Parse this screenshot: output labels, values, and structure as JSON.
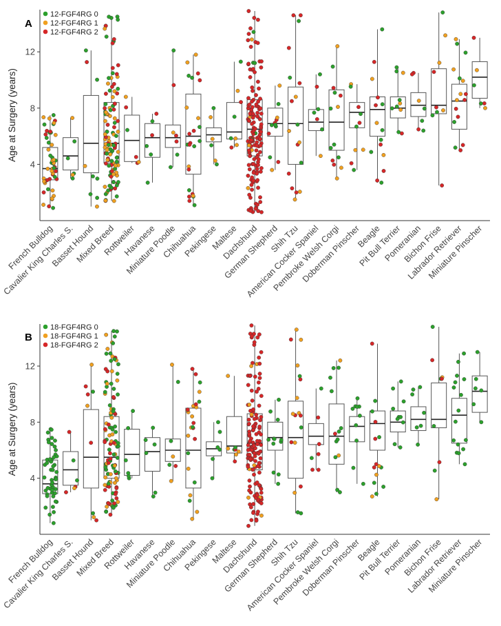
{
  "chart_data": [
    {
      "type": "box",
      "panel_label": "A",
      "ylabel": "Age at Surgery (years)",
      "xlabel": "",
      "ylim": [
        0,
        15
      ],
      "yticks": [
        4,
        8,
        12
      ],
      "grid": false,
      "legend_position": "top-left",
      "legend": [
        {
          "label": "12-FGF4RG 0",
          "color": "#2ca02c"
        },
        {
          "label": "12-FGF4RG 1",
          "color": "#f0a020"
        },
        {
          "label": "12-FGF4RG 2",
          "color": "#d62728"
        }
      ],
      "categories": [
        "French Bulldog",
        "Cavalier King Charles S.",
        "Basset Hound",
        "Mixed Breed",
        "Rottweiler",
        "Havanese",
        "Miniature Poodle",
        "Chihuahua",
        "Pekingese",
        "Maltese",
        "Dachshund",
        "German Shepherd",
        "Shih Tzu",
        "American Cocker Spaniel",
        "Pembroke Welsh Corgi",
        "Doberman Pinscher",
        "Beagle",
        "Pit Bull Terrier",
        "Pomeranian",
        "Bichon Frise",
        "Labrador Retriever",
        "Miniature Pinscher"
      ],
      "boxes": [
        {
          "min": 0.9,
          "q1": 2.9,
          "median": 3.7,
          "q3": 5.2,
          "max": 7.5
        },
        {
          "min": 3.0,
          "q1": 3.6,
          "median": 4.6,
          "q3": 5.9,
          "max": 7.3
        },
        {
          "min": 1.0,
          "q1": 3.4,
          "median": 5.5,
          "q3": 8.9,
          "max": 12.1
        },
        {
          "min": 1.4,
          "q1": 4.1,
          "median": 5.5,
          "q3": 8.4,
          "max": 14.5
        },
        {
          "min": 4.1,
          "q1": 4.2,
          "median": 5.7,
          "q3": 7.5,
          "max": 8.8
        },
        {
          "min": 2.7,
          "q1": 4.5,
          "median": 5.9,
          "q3": 6.9,
          "max": 7.6
        },
        {
          "min": 3.8,
          "q1": 5.2,
          "median": 5.9,
          "q3": 6.8,
          "max": 12.1
        },
        {
          "min": 1.1,
          "q1": 3.3,
          "median": 6.0,
          "q3": 9.0,
          "max": 11.8
        },
        {
          "min": 4.0,
          "q1": 5.6,
          "median": 6.1,
          "q3": 6.6,
          "max": 8.0
        },
        {
          "min": 5.2,
          "q1": 5.8,
          "median": 6.3,
          "q3": 8.4,
          "max": 11.3
        },
        {
          "min": 0.6,
          "q1": 4.6,
          "median": 6.5,
          "q3": 8.6,
          "max": 14.9
        },
        {
          "min": 3.6,
          "q1": 6.0,
          "median": 6.9,
          "q3": 8.0,
          "max": 9.6
        },
        {
          "min": 1.5,
          "q1": 4.0,
          "median": 6.9,
          "q3": 9.5,
          "max": 14.6
        },
        {
          "min": 4.6,
          "q1": 6.4,
          "median": 7.0,
          "q3": 7.9,
          "max": 10.4
        },
        {
          "min": 3.0,
          "q1": 5.0,
          "median": 7.0,
          "q3": 9.3,
          "max": 12.4
        },
        {
          "min": 3.6,
          "q1": 6.6,
          "median": 7.7,
          "q3": 8.4,
          "max": 9.7
        },
        {
          "min": 2.7,
          "q1": 6.0,
          "median": 7.9,
          "q3": 8.8,
          "max": 13.6
        },
        {
          "min": 6.2,
          "q1": 7.3,
          "median": 8.0,
          "q3": 8.8,
          "max": 10.9
        },
        {
          "min": 6.4,
          "q1": 7.4,
          "median": 8.2,
          "q3": 9.1,
          "max": 10.5
        },
        {
          "min": 2.5,
          "q1": 7.6,
          "median": 8.2,
          "q3": 10.8,
          "max": 14.8
        },
        {
          "min": 5.0,
          "q1": 6.5,
          "median": 8.5,
          "q3": 9.7,
          "max": 12.9
        },
        {
          "min": 8.0,
          "q1": 8.7,
          "median": 10.2,
          "q3": 11.3,
          "max": 13.0
        }
      ]
    },
    {
      "type": "box",
      "panel_label": "B",
      "ylabel": "Age at Surgery (years)",
      "xlabel": "",
      "ylim": [
        0,
        15
      ],
      "yticks": [
        4,
        8,
        12
      ],
      "grid": false,
      "legend_position": "top-left",
      "legend": [
        {
          "label": "18-FGF4RG 0",
          "color": "#2ca02c"
        },
        {
          "label": "18-FGF4RG 1",
          "color": "#f0a020"
        },
        {
          "label": "18-FGF4RG 2",
          "color": "#d62728"
        }
      ],
      "categories": [
        "French Bulldog",
        "Cavalier King Charles S.",
        "Basset Hound",
        "Mixed Breed",
        "Rottweiler",
        "Havanese",
        "Miniature Poodle",
        "Chihuahua",
        "Pekingese",
        "Maltese",
        "Dachshund",
        "German Shepherd",
        "Shih Tzu",
        "American Cocker Spaniel",
        "Pembroke Welsh Corgi",
        "Doberman Pinscher",
        "Beagle",
        "Pit Bull Terrier",
        "Pomeranian",
        "Bichon Frise",
        "Labrador Retriever",
        "Miniature Pinscher"
      ],
      "boxes": [
        {
          "min": 0.8,
          "q1": 2.9,
          "median": 3.6,
          "q3": 5.3,
          "max": 7.5
        },
        {
          "min": 3.0,
          "q1": 3.5,
          "median": 4.6,
          "q3": 5.9,
          "max": 7.3
        },
        {
          "min": 1.0,
          "q1": 3.3,
          "median": 5.5,
          "q3": 8.9,
          "max": 12.1
        },
        {
          "min": 1.4,
          "q1": 4.0,
          "median": 5.5,
          "q3": 8.4,
          "max": 14.5
        },
        {
          "min": 4.0,
          "q1": 4.2,
          "median": 5.7,
          "q3": 7.5,
          "max": 8.8
        },
        {
          "min": 2.7,
          "q1": 4.5,
          "median": 5.9,
          "q3": 6.9,
          "max": 7.6
        },
        {
          "min": 3.8,
          "q1": 5.2,
          "median": 6.0,
          "q3": 6.8,
          "max": 12.1
        },
        {
          "min": 1.1,
          "q1": 3.3,
          "median": 6.0,
          "q3": 9.0,
          "max": 11.8
        },
        {
          "min": 4.0,
          "q1": 5.6,
          "median": 6.1,
          "q3": 6.6,
          "max": 8.0
        },
        {
          "min": 5.2,
          "q1": 5.8,
          "median": 6.3,
          "q3": 8.4,
          "max": 11.3
        },
        {
          "min": 0.6,
          "q1": 4.6,
          "median": 6.5,
          "q3": 8.6,
          "max": 14.9
        },
        {
          "min": 3.6,
          "q1": 6.0,
          "median": 6.9,
          "q3": 8.0,
          "max": 9.6
        },
        {
          "min": 1.5,
          "q1": 4.0,
          "median": 6.9,
          "q3": 9.5,
          "max": 14.6
        },
        {
          "min": 4.6,
          "q1": 6.4,
          "median": 7.0,
          "q3": 7.9,
          "max": 10.4
        },
        {
          "min": 3.0,
          "q1": 5.0,
          "median": 7.0,
          "q3": 9.3,
          "max": 12.4
        },
        {
          "min": 3.6,
          "q1": 6.6,
          "median": 7.7,
          "q3": 8.4,
          "max": 9.7
        },
        {
          "min": 2.7,
          "q1": 6.0,
          "median": 7.9,
          "q3": 8.8,
          "max": 13.6
        },
        {
          "min": 6.2,
          "q1": 7.3,
          "median": 8.0,
          "q3": 8.8,
          "max": 10.9
        },
        {
          "min": 6.4,
          "q1": 7.4,
          "median": 8.2,
          "q3": 9.1,
          "max": 10.5
        },
        {
          "min": 2.5,
          "q1": 7.6,
          "median": 8.2,
          "q3": 10.8,
          "max": 14.8
        },
        {
          "min": 5.0,
          "q1": 6.5,
          "median": 8.5,
          "q3": 9.7,
          "max": 12.9
        },
        {
          "min": 8.0,
          "q1": 8.7,
          "median": 10.2,
          "q3": 11.3,
          "max": 13.0
        }
      ]
    }
  ]
}
